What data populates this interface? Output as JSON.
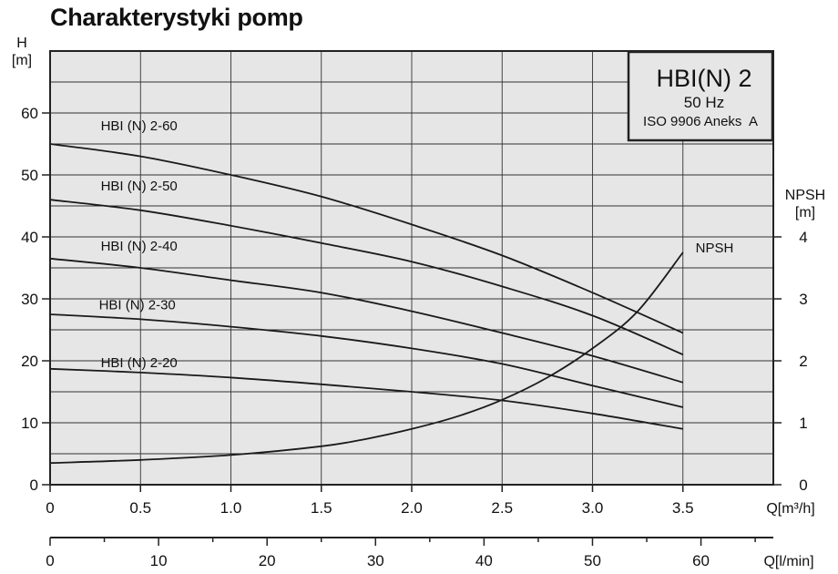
{
  "title": "Charakterystyki pomp",
  "chart_data": {
    "type": "line",
    "title": "Charakterystyki pomp",
    "info_box": {
      "model": "HBI(N) 2",
      "frequency": "50 Hz",
      "standard": "ISO 9906 Aneks  A"
    },
    "x_axis": {
      "label": "Q[m³/h]",
      "range": [
        0,
        4
      ],
      "ticks": [
        0,
        0.5,
        1.0,
        1.5,
        2.0,
        2.5,
        3.0,
        3.5
      ],
      "tick_labels": [
        "0",
        "0.5",
        "1.0",
        "1.5",
        "2.0",
        "2.5",
        "3.0",
        "3.5"
      ]
    },
    "x2_axis": {
      "label": "Q[l/min]",
      "range": [
        0,
        66.67
      ],
      "ticks": [
        0,
        10,
        20,
        30,
        40,
        50,
        60
      ],
      "tick_labels": [
        "0",
        "10",
        "20",
        "30",
        "40",
        "50",
        "60"
      ]
    },
    "y_axis": {
      "label_line1": "H",
      "label_line2": "[m]",
      "range": [
        0,
        70
      ],
      "ticks": [
        0,
        10,
        20,
        30,
        40,
        50,
        60
      ],
      "tick_labels": [
        "0",
        "10",
        "20",
        "30",
        "40",
        "50",
        "60"
      ]
    },
    "y2_axis": {
      "label_line1": "NPSH",
      "label_line2": "[m]",
      "range": [
        0,
        7
      ],
      "ticks": [
        0,
        1,
        2,
        3,
        4
      ],
      "tick_labels": [
        "0",
        "1",
        "2",
        "3",
        "4"
      ]
    },
    "grid": true,
    "series": [
      {
        "name": "HBI (N) 2-60",
        "label_at": [
          0.28,
          57.2
        ],
        "x": [
          0,
          0.5,
          1.0,
          1.5,
          2.0,
          2.5,
          3.0,
          3.5
        ],
        "y": [
          55,
          53,
          50,
          46.5,
          42,
          37,
          31,
          24.5
        ]
      },
      {
        "name": "HBI (N) 2-50",
        "label_at": [
          0.28,
          47.5
        ],
        "x": [
          0,
          0.5,
          1.0,
          1.5,
          2.0,
          2.5,
          3.0,
          3.5
        ],
        "y": [
          46,
          44.3,
          41.8,
          39,
          36,
          32,
          27.3,
          21
        ]
      },
      {
        "name": "HBI (N) 2-40",
        "label_at": [
          0.28,
          37.8
        ],
        "x": [
          0,
          0.5,
          1.0,
          1.5,
          2.0,
          2.5,
          3.0,
          3.5
        ],
        "y": [
          36.5,
          35,
          33,
          31,
          28,
          24.5,
          20.8,
          16.5
        ]
      },
      {
        "name": "HBI (N) 2-30",
        "label_at": [
          0.27,
          28.3
        ],
        "x": [
          0,
          0.5,
          1.0,
          1.5,
          2.0,
          2.5,
          3.0,
          3.5
        ],
        "y": [
          27.5,
          26.7,
          25.5,
          24,
          22,
          19.5,
          16,
          12.5
        ]
      },
      {
        "name": "HBI (N) 2-20",
        "label_at": [
          0.28,
          19.0
        ],
        "x": [
          0,
          0.5,
          1.0,
          1.5,
          2.0,
          2.5,
          3.0,
          3.5
        ],
        "y": [
          18.7,
          18.1,
          17.3,
          16.2,
          15,
          13.6,
          11.5,
          9
        ]
      }
    ],
    "npsh": {
      "name": "NPSH",
      "label_at": [
        3.57,
        3.75
      ],
      "x": [
        0,
        0.5,
        1.0,
        1.5,
        1.75,
        2.0,
        2.25,
        2.5,
        2.75,
        3.0,
        3.25,
        3.5
      ],
      "y": [
        0.35,
        0.4,
        0.48,
        0.62,
        0.74,
        0.9,
        1.1,
        1.37,
        1.73,
        2.2,
        2.8,
        3.75
      ]
    }
  }
}
